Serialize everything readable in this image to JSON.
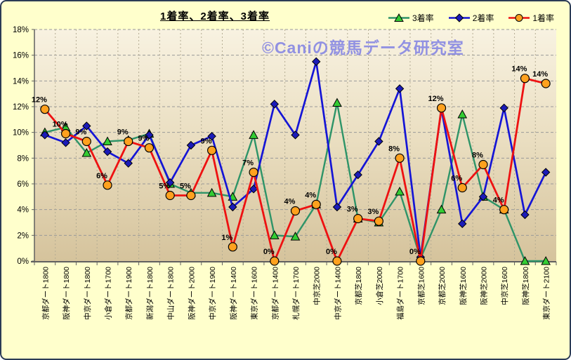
{
  "window": {
    "background": "#ffffcc",
    "border_color": "#2b3b55"
  },
  "header": {
    "title": "1着率、2着率、3着率"
  },
  "watermark": {
    "text": "©Caniの競馬データ研究室",
    "color": "#9191e2"
  },
  "chart_data": {
    "type": "line",
    "title": "1着率、2着率、3着率",
    "categories": [
      "京都ダート1800",
      "阪神ダート1800",
      "中京ダート1800",
      "小倉ダート1700",
      "京都ダート1900",
      "新潟ダート1800",
      "中山ダート1800",
      "阪神ダート2000",
      "中京ダート1900",
      "阪神ダート1400",
      "東京ダート1600",
      "京都ダート1400",
      "札幌ダート1700",
      "中京芝2000",
      "中京ダート1400",
      "京都芝1800",
      "小倉芝2000",
      "福島ダート1700",
      "京都芝1600",
      "京都芝2000",
      "阪神芝1600",
      "阪神芝2000",
      "中京芝1600",
      "阪神芝1800",
      "東京ダート2100"
    ],
    "series": [
      {
        "name": "3着率",
        "marker": "triangle",
        "line_color": "#2e9468",
        "marker_color": "#33cc33",
        "values": [
          10.0,
          10.4,
          8.4,
          9.3,
          9.4,
          9.9,
          6.0,
          5.3,
          5.3,
          5.0,
          9.8,
          2.0,
          1.9,
          4.4,
          12.3,
          3.3,
          3.0,
          5.4,
          0.2,
          4.0,
          11.4,
          5.0,
          4.0,
          0.0,
          0.0
        ]
      },
      {
        "name": "2着率",
        "marker": "diamond",
        "line_color": "#1515d6",
        "marker_color": "#1b1bb8",
        "values": [
          9.8,
          9.2,
          10.5,
          8.5,
          7.6,
          9.8,
          6.1,
          9.0,
          9.7,
          4.2,
          5.6,
          12.2,
          9.8,
          15.5,
          4.2,
          6.7,
          9.3,
          13.4,
          0.3,
          11.8,
          2.9,
          5.0,
          11.9,
          3.6,
          6.9
        ]
      },
      {
        "name": "1着率",
        "marker": "circle",
        "line_color": "#ee1111",
        "marker_color": "#ffa11e",
        "values": [
          11.8,
          9.9,
          9.3,
          5.9,
          9.3,
          8.8,
          5.1,
          5.1,
          8.6,
          1.1,
          6.9,
          0.0,
          3.9,
          4.4,
          0.0,
          3.3,
          3.1,
          8.0,
          0.0,
          11.9,
          5.7,
          7.5,
          4.0,
          14.2,
          13.8
        ],
        "data_labels": [
          "12%",
          "10%",
          "9%",
          "6%",
          "9%",
          "9%",
          "5%",
          "5%",
          "9%",
          "1%",
          "7%",
          "0%",
          "4%",
          "4%",
          "0%",
          "3%",
          "3%",
          "8%",
          "0%",
          "12%",
          "6%",
          "8%",
          "4%",
          "14%",
          "14%"
        ]
      }
    ],
    "ylim": [
      0,
      18
    ],
    "y_step": 2,
    "y_tick_labels": [
      "0%",
      "2%",
      "4%",
      "6%",
      "8%",
      "10%",
      "12%",
      "14%",
      "16%",
      "18%"
    ],
    "x_tick_rotation": 90,
    "grid": true,
    "legend_position": "top-right",
    "plot_bg_gradient": [
      "#f8f2e1",
      "#e9ddbf",
      "#d5c39c"
    ],
    "gridline_color": "#999999",
    "axis_color": "#606060"
  }
}
